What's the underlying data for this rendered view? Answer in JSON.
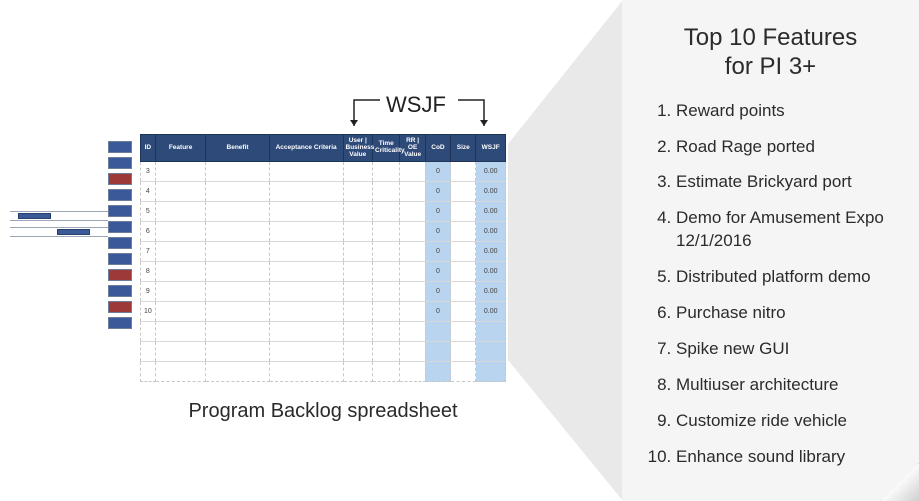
{
  "colors": {
    "header_bg": "#2e4a78",
    "header_text": "#ffffff",
    "cell_border": "#c7c7c7",
    "highlight_cell": "#b9d4ef",
    "box_blue": "#3b5998",
    "box_red": "#9c3a3a",
    "panel_bg": "#f5f5f5",
    "wedge_fill": "#e9e9e9",
    "text": "#2a2a2a"
  },
  "mini_stack": {
    "boxes": [
      "blue",
      "blue",
      "red",
      "blue",
      "blue",
      "blue",
      "blue",
      "blue",
      "red",
      "blue",
      "red",
      "blue"
    ]
  },
  "timeline": {
    "bars": [
      {
        "track": 0,
        "left_pct": 8,
        "width_pct": 34
      },
      {
        "track": 1,
        "left_pct": 48,
        "width_pct": 34
      }
    ]
  },
  "wsjf_label": "WSJF",
  "spreadsheet": {
    "caption": "Program Backlog spreadsheet",
    "columns": [
      {
        "key": "id",
        "label": "ID",
        "class": "col-id"
      },
      {
        "key": "feature",
        "label": "Feature",
        "class": "col-feature"
      },
      {
        "key": "benefit",
        "label": "Benefit",
        "class": "col-benefit"
      },
      {
        "key": "acc",
        "label": "Acceptance Criteria",
        "class": "col-acc"
      },
      {
        "key": "ubv",
        "label": "User | Business Value",
        "class": "col-ubv"
      },
      {
        "key": "tc",
        "label": "Time Criticality",
        "class": "col-tc"
      },
      {
        "key": "rr",
        "label": "RR | OE Value",
        "class": "col-rr"
      },
      {
        "key": "cod",
        "label": "CoD",
        "class": "col-cod"
      },
      {
        "key": "size",
        "label": "Size",
        "class": "col-size"
      },
      {
        "key": "wsjf",
        "label": "WSJF",
        "class": "col-wsjf"
      }
    ],
    "highlight_columns": [
      "cod",
      "wsjf"
    ],
    "numbered_rows": [
      3,
      4,
      5,
      6,
      7,
      8,
      9,
      10
    ],
    "extra_blank_rows": 3,
    "cod_value": "0",
    "wsjf_value": "0.00"
  },
  "right_panel": {
    "title_line1": "Top 10 Features",
    "title_line2": "for PI 3+",
    "items": [
      "Reward points",
      "Road Rage ported",
      "Estimate Brickyard port",
      "Demo for Amusement Expo 12/1/2016",
      "Distributed platform demo",
      "Purchase nitro",
      "Spike new GUI",
      "Multiuser architecture",
      "Customize ride vehicle",
      "Enhance sound library"
    ]
  }
}
